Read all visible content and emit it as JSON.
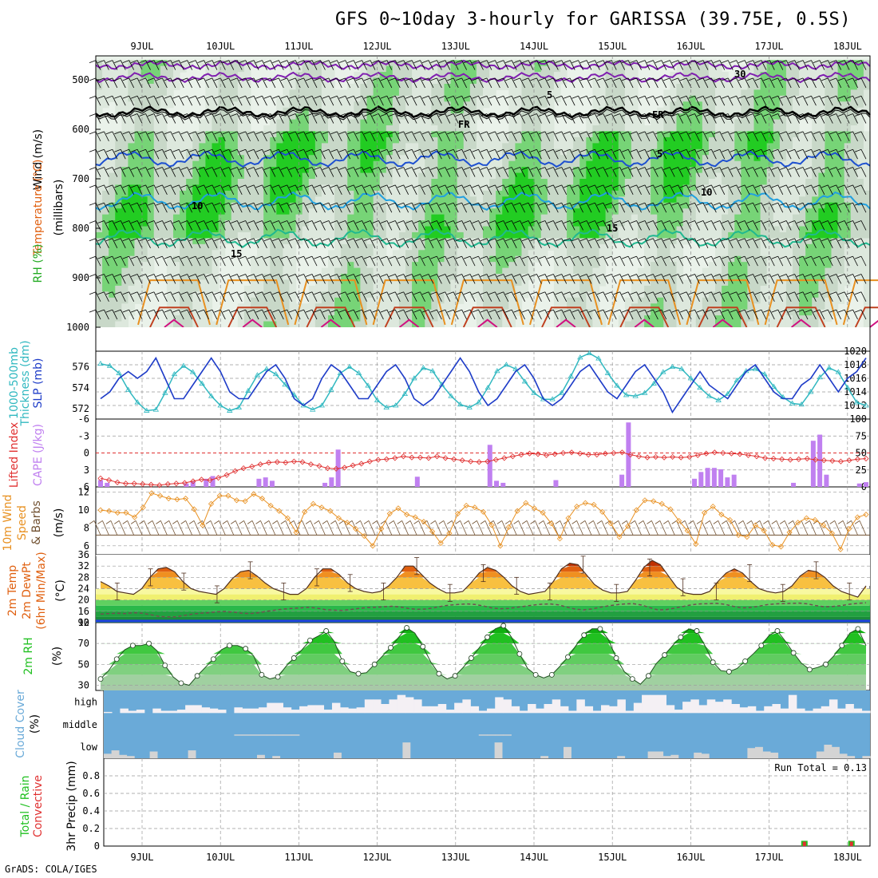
{
  "title": "GFS 0~10day 3-hourly for GARISSA (39.75E, 0.5S)",
  "footer": "GrADS: COLA/IGES",
  "dates": [
    "9JUL",
    "10JUL",
    "11JUL",
    "12JUL",
    "13JUL",
    "14JUL",
    "15JUL",
    "16JUL",
    "17JUL",
    "18JUL"
  ],
  "colors": {
    "grid": "#999999",
    "rh_dark": "#22cc22",
    "rh_mid": "#77d477",
    "rh_light": "#c8d8c8",
    "slp": "#1e3cc8",
    "thick": "#30b8c0",
    "li": "#e03030",
    "cape": "#c080f0",
    "wind10": "#e89020",
    "temp": "#e06010",
    "rh2m": "#20c020",
    "cloud": "#6aaad8",
    "cloud_gray": "#d4d4d4",
    "precip_green": "#20c020",
    "precip_red": "#e03030"
  },
  "chart_data": [
    {
      "type": "heatmap",
      "name": "upper",
      "ylabel_parts": [
        "RH (%)",
        "Temperature (°C)",
        "Wind (m/s)"
      ],
      "ylabel2": "(millibars)",
      "yticks": [
        "500",
        "600",
        "700",
        "800",
        "900",
        "1000"
      ],
      "ylim": [
        450,
        1000
      ],
      "contour_labels": [
        {
          "text": "5",
          "color": "#8020b0"
        },
        {
          "text": "FR",
          "color": "#000000"
        },
        {
          "text": "FR",
          "color": "#000000"
        },
        {
          "text": "5",
          "color": "#1e50d0"
        },
        {
          "text": "10",
          "color": "#20a0e0"
        },
        {
          "text": "10",
          "color": "#20a0e0"
        },
        {
          "text": "15",
          "color": "#20b890"
        },
        {
          "text": "15",
          "color": "#20b890"
        },
        {
          "text": "30",
          "color": "#888888"
        }
      ]
    },
    {
      "type": "line",
      "name": "slp_thickness",
      "ylabel_left": [
        "1000-500mb",
        "Thickness (dm)"
      ],
      "ylabel_right": "SLP (mb)",
      "yticks_left": [
        "572",
        "574",
        "576"
      ],
      "yticks_right": [
        "1012",
        "1014",
        "1016",
        "1018",
        "1020"
      ],
      "slp": [
        1013,
        1014,
        1016,
        1017,
        1016,
        1017,
        1019,
        1016,
        1013,
        1013,
        1015,
        1017,
        1019,
        1017,
        1014,
        1013,
        1013,
        1015,
        1017,
        1018,
        1016,
        1013,
        1012,
        1013,
        1016,
        1018,
        1017,
        1015,
        1013,
        1013,
        1015,
        1017,
        1018,
        1016,
        1013,
        1012,
        1013,
        1015,
        1017,
        1019,
        1017,
        1014,
        1012,
        1013,
        1015,
        1017,
        1018,
        1016,
        1013,
        1012,
        1013,
        1015,
        1017,
        1018,
        1016,
        1014,
        1013,
        1015,
        1017,
        1018,
        1016,
        1014,
        1011,
        1013,
        1015,
        1017,
        1015,
        1014,
        1013,
        1015,
        1017,
        1018,
        1016,
        1014,
        1013,
        1013,
        1015,
        1016,
        1018,
        1016,
        1014,
        1016,
        1017,
        1019
      ],
      "thickness": [
        576.3,
        576.1,
        575.4,
        573.8,
        572.6,
        571.8,
        571.9,
        573.5,
        575.3,
        576.1,
        575.5,
        574.4,
        573.2,
        572.3,
        571.8,
        572.1,
        573.7,
        575.2,
        575.8,
        575.3,
        574.3,
        573.3,
        572.3,
        571.9,
        572.3,
        573.8,
        575.4,
        576.0,
        575.4,
        574.2,
        572.8,
        572.1,
        572.3,
        573.4,
        574.9,
        575.9,
        575.6,
        574.3,
        573.2,
        572.4,
        572.1,
        572.6,
        574.0,
        575.6,
        576.2,
        575.8,
        574.6,
        573.5,
        572.9,
        572.9,
        573.5,
        575.1,
        576.9,
        577.3,
        576.8,
        575.4,
        574.2,
        573.3,
        573.2,
        573.5,
        574.4,
        575.5,
        576.0,
        575.8,
        574.9,
        574.0,
        573.2,
        572.8,
        573.4,
        574.7,
        575.6,
        575.8,
        575.3,
        574.1,
        573.1,
        572.5,
        572.4,
        573.6,
        575.0,
        575.9,
        575.5,
        574.0,
        572.6,
        572.3
      ]
    },
    {
      "type": "bar",
      "name": "li_cape",
      "ylabel_left": "Lifted Index",
      "ylabel_right": "CAPE (J/kg)",
      "yticks_left": [
        "6",
        "3",
        "0",
        "-3",
        "-6"
      ],
      "yticks_right": [
        "0",
        "25",
        "50",
        "75",
        "100"
      ],
      "lifted_index": [
        4.5,
        4.8,
        5.2,
        5.4,
        5.4,
        5.5,
        5.6,
        5.7,
        5.5,
        5.4,
        5.3,
        5.0,
        4.7,
        4.8,
        4.4,
        3.9,
        3.2,
        2.7,
        2.4,
        2.0,
        1.7,
        1.6,
        1.7,
        1.5,
        1.6,
        2.0,
        2.3,
        2.7,
        2.8,
        2.6,
        2.2,
        1.9,
        1.5,
        1.2,
        1.1,
        0.9,
        0.6,
        0.8,
        0.8,
        0.9,
        0.6,
        0.9,
        1.1,
        1.3,
        1.5,
        1.6,
        1.5,
        1.2,
        0.9,
        0.6,
        0.3,
        0.1,
        0.2,
        0.4,
        0.2,
        0.0,
        -0.1,
        0.1,
        0.3,
        0.3,
        0.1,
        0.0,
        -0.1,
        0.3,
        0.6,
        0.8,
        0.7,
        0.8,
        0.7,
        0.8,
        0.7,
        0.4,
        0.1,
        -0.1,
        0.0,
        0.1,
        0.2,
        0.4,
        0.6,
        0.9,
        1.0,
        1.1,
        1.2,
        1.1,
        1.0,
        1.2,
        1.3,
        1.4,
        1.5,
        1.3,
        1.1,
        1.0
      ],
      "cape": [
        10,
        6,
        0,
        0,
        0,
        0,
        0,
        0,
        0,
        0,
        0,
        0,
        0,
        5,
        8,
        0,
        12,
        16,
        0,
        0,
        0,
        0,
        0,
        0,
        12,
        14,
        9,
        0,
        0,
        0,
        0,
        0,
        0,
        0,
        6,
        14,
        55,
        0,
        0,
        0,
        0,
        0,
        0,
        0,
        0,
        0,
        0,
        0,
        15,
        0,
        0,
        0,
        0,
        0,
        0,
        0,
        0,
        0,
        0,
        62,
        9,
        6,
        0,
        0,
        0,
        0,
        0,
        0,
        0,
        10,
        0,
        0,
        0,
        0,
        0,
        0,
        0,
        0,
        0,
        18,
        95,
        0,
        0,
        0,
        0,
        0,
        0,
        0,
        0,
        0,
        12,
        22,
        28,
        28,
        26,
        14,
        18,
        0,
        0,
        0,
        0,
        0,
        0,
        0,
        0,
        6,
        0,
        0,
        68,
        77,
        18,
        0,
        0,
        0,
        0,
        5,
        7
      ]
    },
    {
      "type": "line",
      "name": "wind10",
      "ylabel_left": [
        "10m Wind",
        "Speed",
        "& Barbs"
      ],
      "ylabel_right": "(m/s)",
      "yticks": [
        "6",
        "8",
        "10",
        "12"
      ],
      "speed": [
        10.0,
        9.9,
        9.7,
        9.7,
        9.2,
        10.3,
        11.9,
        11.6,
        11.3,
        11.2,
        11.3,
        10.1,
        8.3,
        10.7,
        11.6,
        11.6,
        11.1,
        11.0,
        11.8,
        11.3,
        10.5,
        9.9,
        9.1,
        7.5,
        9.8,
        10.7,
        10.3,
        9.9,
        9.1,
        8.6,
        7.9,
        7.1,
        6.0,
        7.9,
        9.6,
        10.2,
        9.5,
        9.2,
        8.7,
        7.6,
        6.3,
        7.4,
        9.6,
        10.5,
        10.3,
        9.8,
        8.3,
        6.0,
        8.1,
        9.9,
        10.8,
        10.2,
        9.7,
        8.5,
        6.8,
        9.1,
        10.4,
        10.8,
        10.6,
        9.8,
        8.5,
        7.0,
        8.2,
        10.0,
        11.1,
        11.0,
        10.7,
        10.1,
        8.8,
        7.7,
        6.2,
        9.7,
        10.4,
        9.5,
        8.9,
        7.2,
        7.0,
        8.3,
        7.7,
        6.1,
        5.9,
        7.5,
        8.6,
        9.1,
        8.9,
        8.3,
        7.4,
        5.6,
        7.9,
        9.2,
        9.5
      ]
    },
    {
      "type": "area",
      "name": "temp2m",
      "ylabel_left": [
        "2m Temp",
        "2m DewPt",
        "(6hr Min/Max)"
      ],
      "ylabel_right": "(°C)",
      "yticks": [
        "12",
        "16",
        "20",
        "24",
        "28",
        "32",
        "36"
      ],
      "temperature": [
        26.5,
        25.0,
        23.0,
        22.5,
        22.0,
        24.0,
        28.0,
        31.0,
        31.5,
        30.0,
        26.5,
        24.0,
        23.0,
        22.5,
        22.0,
        24.0,
        27.5,
        30.0,
        30.5,
        28.5,
        26.0,
        24.0,
        23.0,
        22.0,
        22.0,
        24.0,
        28.0,
        31.0,
        31.0,
        29.0,
        26.0,
        24.0,
        23.0,
        22.5,
        23.0,
        25.0,
        28.0,
        32.0,
        32.0,
        29.0,
        26.0,
        24.0,
        22.5,
        22.5,
        23.0,
        26.0,
        29.5,
        31.5,
        30.5,
        28.0,
        25.0,
        23.0,
        22.0,
        22.5,
        23.0,
        26.5,
        31.0,
        33.0,
        32.5,
        29.0,
        25.5,
        23.5,
        22.5,
        22.5,
        23.0,
        27.0,
        31.5,
        34.0,
        32.5,
        28.5,
        24.5,
        22.5,
        22.0,
        22.0,
        23.0,
        26.5,
        29.5,
        31.0,
        29.5,
        26.5,
        24.0,
        23.0,
        22.5,
        23.0,
        25.0,
        28.5,
        30.5,
        30.0,
        28.0,
        25.0,
        23.0,
        22.0,
        21.0,
        25.0
      ],
      "dewpoint": [
        15.0,
        15.2,
        15.3,
        15.2,
        15.5,
        15.3,
        14.8,
        14.2,
        14.0,
        14.0,
        14.5,
        15.0,
        15.3,
        15.5,
        15.8,
        15.9,
        15.7,
        15.3,
        15.2,
        15.5,
        16.0,
        16.4,
        16.8,
        17.0,
        17.2,
        17.4,
        17.1,
        16.6,
        16.4,
        16.3,
        16.6,
        17.0,
        17.3,
        17.4,
        17.6,
        17.8,
        17.5,
        17.0,
        16.7,
        16.8,
        17.2,
        17.8,
        18.2,
        18.4,
        18.6,
        18.4,
        17.9,
        17.2,
        16.9,
        17.0,
        17.4,
        17.8,
        18.2,
        18.5,
        18.6,
        18.3,
        17.5,
        16.8,
        16.5,
        16.8,
        17.4,
        17.9,
        18.3,
        18.6,
        18.7,
        18.2,
        17.3,
        16.5,
        16.6,
        17.1,
        17.7,
        18.3,
        18.6,
        18.7,
        18.8,
        18.5,
        17.8,
        17.2,
        17.3,
        17.7,
        18.3,
        18.6,
        18.7,
        18.8,
        18.9,
        18.6,
        18.0,
        17.6,
        17.7,
        18.0,
        18.5,
        18.8,
        19.0
      ]
    },
    {
      "type": "area",
      "name": "rh2m",
      "ylabel_left": "2m RH",
      "ylabel_right": "(%)",
      "yticks": [
        "30",
        "50",
        "70",
        "90"
      ],
      "rh": [
        36,
        44,
        55,
        64,
        68,
        68,
        70,
        63,
        49,
        38,
        32,
        30,
        39,
        47,
        55,
        64,
        68,
        68,
        65,
        58,
        40,
        36,
        38,
        48,
        56,
        64,
        73,
        77,
        82,
        72,
        53,
        43,
        41,
        42,
        50,
        58,
        66,
        76,
        85,
        80,
        67,
        52,
        41,
        36,
        39,
        47,
        56,
        66,
        76,
        84,
        87,
        76,
        60,
        46,
        40,
        37,
        40,
        48,
        57,
        68,
        78,
        84,
        84,
        74,
        56,
        43,
        36,
        31,
        39,
        51,
        59,
        68,
        76,
        84,
        82,
        68,
        52,
        44,
        43,
        46,
        53,
        60,
        68,
        78,
        82,
        72,
        61,
        51,
        45,
        47,
        50,
        58,
        68,
        80,
        84,
        68
      ],
      "open_point_indices": "circles"
    },
    {
      "type": "bar",
      "name": "cloud",
      "ylabel_left": "Cloud Cover",
      "ylabel_right": "(%)",
      "levels": [
        "high",
        "middle",
        "low"
      ],
      "high": [
        5,
        0,
        20,
        10,
        15,
        0,
        20,
        10,
        10,
        15,
        35,
        35,
        25,
        20,
        15,
        0,
        25,
        20,
        20,
        25,
        45,
        45,
        25,
        15,
        30,
        35,
        35,
        15,
        45,
        25,
        20,
        25,
        60,
        60,
        40,
        60,
        80,
        70,
        60,
        30,
        30,
        40,
        15,
        45,
        60,
        30,
        10,
        20,
        70,
        60,
        30,
        10,
        40,
        20,
        40,
        60,
        30,
        10,
        60,
        30,
        10,
        35,
        30,
        60,
        10,
        45,
        80,
        80,
        80,
        35,
        15,
        50,
        60,
        35,
        60,
        50,
        60,
        40,
        25,
        30,
        10,
        30,
        40,
        20,
        80,
        20,
        10,
        20,
        30,
        60,
        20,
        40,
        20,
        10
      ],
      "middle": [
        0,
        0,
        0,
        0,
        0,
        0,
        0,
        0,
        0,
        0,
        0,
        0,
        0,
        0,
        0,
        0,
        5,
        5,
        5,
        5,
        5,
        5,
        5,
        5,
        0,
        0,
        0,
        0,
        0,
        0,
        0,
        0,
        0,
        0,
        0,
        0,
        0,
        0,
        0,
        0,
        0,
        0,
        0,
        0,
        0,
        0,
        5,
        5,
        5,
        5,
        0,
        0,
        0,
        0,
        0,
        0,
        0,
        0,
        0,
        0,
        0,
        0,
        0,
        0,
        0,
        0,
        0,
        0,
        0,
        0,
        0,
        0,
        0,
        0,
        0,
        0,
        0,
        0,
        0,
        0,
        0,
        0,
        0,
        0,
        0,
        0,
        0,
        0,
        0,
        0,
        0,
        0,
        0,
        0
      ],
      "low": [
        20,
        35,
        15,
        10,
        0,
        0,
        30,
        0,
        0,
        0,
        0,
        35,
        0,
        0,
        0,
        0,
        0,
        0,
        0,
        0,
        15,
        0,
        10,
        0,
        0,
        0,
        0,
        0,
        0,
        0,
        25,
        0,
        0,
        0,
        0,
        0,
        0,
        0,
        0,
        70,
        0,
        0,
        0,
        0,
        0,
        0,
        0,
        0,
        0,
        0,
        0,
        70,
        0,
        0,
        0,
        0,
        0,
        10,
        0,
        0,
        50,
        0,
        0,
        0,
        0,
        0,
        0,
        10,
        0,
        0,
        0,
        30,
        30,
        10,
        15,
        0,
        0,
        25,
        20,
        0,
        0,
        0,
        0,
        0,
        45,
        50,
        30,
        25,
        0,
        0,
        0,
        0,
        0,
        30,
        60,
        50,
        20,
        10,
        0,
        10
      ],
      "rain": []
    },
    {
      "type": "bar",
      "name": "precip",
      "ylabel_left": [
        "Total / Rain",
        "Convective"
      ],
      "ylabel_right": "3hr Precip (mm)",
      "annotation": "Run Total = 0.13",
      "yticks": [
        "0",
        "0.2",
        "0.4",
        "0.6",
        "0.8"
      ],
      "ylim": [
        0,
        1.0
      ],
      "bars": [
        {
          "day": 8.45,
          "total": 0.06,
          "conv": 0.05
        },
        {
          "day": 9.05,
          "total": 0.06,
          "conv": 0.05
        }
      ]
    }
  ]
}
